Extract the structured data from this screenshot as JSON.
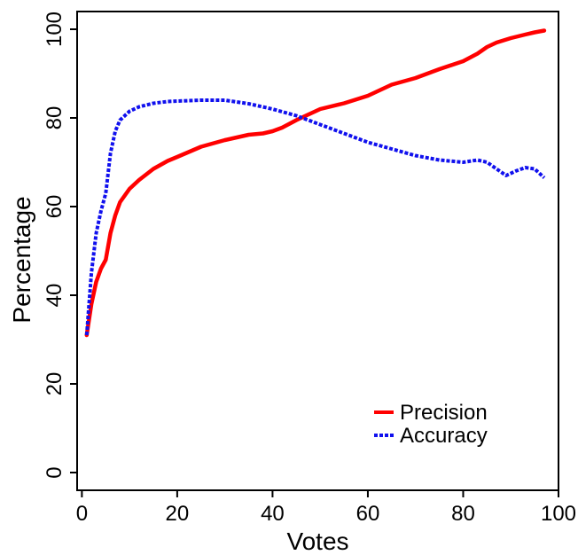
{
  "chart_data": {
    "type": "line",
    "title": "",
    "xlabel": "Votes",
    "ylabel": "Percentage",
    "xlim": [
      -1,
      100
    ],
    "ylim": [
      -4,
      104
    ],
    "x_ticks": [
      0,
      20,
      40,
      60,
      80,
      100
    ],
    "x_tick_labels": [
      "0",
      "20",
      "40",
      "60",
      "80",
      "100"
    ],
    "y_ticks": [
      0,
      20,
      40,
      60,
      80,
      100
    ],
    "y_tick_labels": [
      "0",
      "20",
      "40",
      "60",
      "80",
      "100"
    ],
    "grid": false,
    "legend_position": "bottom-right",
    "series": [
      {
        "name": "Precision",
        "color": "#ff0000",
        "style": "solid",
        "x": [
          1,
          2,
          3,
          4,
          5,
          6,
          7,
          8,
          10,
          12,
          15,
          18,
          20,
          25,
          30,
          35,
          38,
          40,
          42,
          45,
          48,
          50,
          55,
          60,
          65,
          70,
          75,
          80,
          83,
          85,
          87,
          90,
          93,
          95,
          97
        ],
        "y": [
          31,
          38,
          43,
          46,
          48,
          54,
          58,
          61,
          64,
          66,
          68.5,
          70.3,
          71.2,
          73.5,
          75,
          76.2,
          76.5,
          77,
          77.8,
          79.5,
          81,
          82,
          83.3,
          85,
          87.5,
          89,
          91,
          92.8,
          94.5,
          96,
          97,
          98,
          98.8,
          99.3,
          99.7
        ]
      },
      {
        "name": "Accuracy",
        "color": "#1010ee",
        "style": "dashed",
        "x": [
          1,
          2,
          3,
          4,
          5,
          6,
          7,
          8,
          10,
          12,
          15,
          18,
          20,
          25,
          30,
          35,
          40,
          45,
          50,
          55,
          60,
          65,
          70,
          75,
          80,
          83,
          85,
          87,
          89,
          91,
          93,
          95,
          97
        ],
        "y": [
          31,
          45,
          54,
          59,
          63,
          72,
          77,
          79.5,
          81.5,
          82.5,
          83.3,
          83.7,
          83.8,
          84,
          84,
          83.2,
          82,
          80.5,
          78.5,
          76.5,
          74.5,
          73,
          71.5,
          70.5,
          70,
          70.5,
          70,
          68.5,
          67,
          68,
          68.8,
          68.5,
          66.5
        ]
      }
    ]
  }
}
